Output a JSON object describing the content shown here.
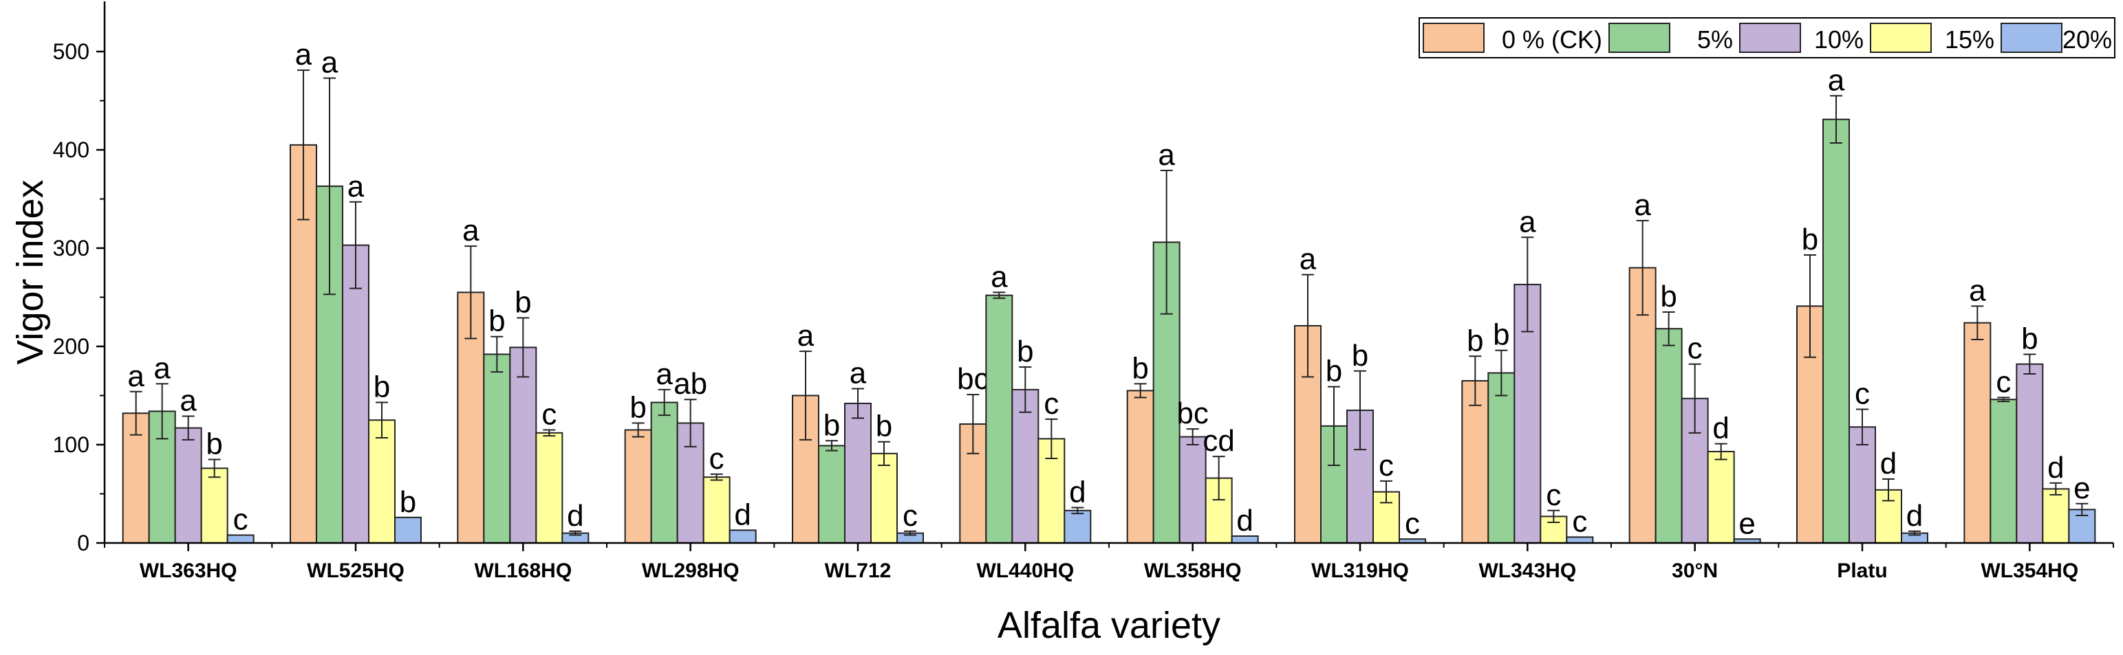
{
  "chart_data": {
    "type": "bar",
    "xlabel": "Alfalfa variety",
    "ylabel": "Vigor index",
    "ylim": [
      0,
      550
    ],
    "yticks": [
      0,
      100,
      200,
      300,
      400,
      500
    ],
    "legend_position": "top-right",
    "categories": [
      "WL363HQ",
      "WL525HQ",
      "WL168HQ",
      "WL298HQ",
      "WL712",
      "WL440HQ",
      "WL358HQ",
      "WL319HQ",
      "WL343HQ",
      "30°N",
      "Platu",
      "WL354HQ"
    ],
    "series": [
      {
        "name": "0 % (CK)",
        "color": "#F9C49A",
        "values": [
          132,
          405,
          255,
          115,
          150,
          121,
          155,
          221,
          165,
          280,
          241,
          224
        ],
        "errors": [
          22,
          76,
          47,
          7,
          45,
          30,
          7,
          52,
          25,
          48,
          52,
          17
        ],
        "letters": [
          "a",
          "a",
          "a",
          "b",
          "a",
          "bc",
          "b",
          "a",
          "b",
          "a",
          "b",
          "a"
        ]
      },
      {
        "name": "5%",
        "color": "#95D096",
        "values": [
          134,
          363,
          192,
          143,
          99,
          252,
          306,
          119,
          173,
          218,
          431,
          146
        ],
        "errors": [
          28,
          110,
          18,
          13,
          5,
          3,
          73,
          40,
          23,
          17,
          24,
          2
        ],
        "letters": [
          "a",
          "a",
          "b",
          "a",
          "b",
          "a",
          "a",
          "b",
          "b",
          "b",
          "a",
          "c"
        ]
      },
      {
        "name": "10%",
        "color": "#C4B1D7",
        "values": [
          117,
          303,
          199,
          122,
          142,
          156,
          108,
          135,
          263,
          147,
          118,
          182
        ],
        "errors": [
          12,
          44,
          30,
          24,
          15,
          23,
          8,
          40,
          48,
          35,
          18,
          10
        ],
        "letters": [
          "a",
          "a",
          "b",
          "ab",
          "a",
          "b",
          "bc",
          "b",
          "a",
          "c",
          "c",
          "b"
        ]
      },
      {
        "name": "15%",
        "color": "#FFFF9E",
        "values": [
          76,
          125,
          112,
          67,
          91,
          106,
          66,
          52,
          27,
          93,
          54,
          55
        ],
        "errors": [
          9,
          18,
          3,
          3,
          12,
          20,
          22,
          11,
          6,
          8,
          11,
          6
        ],
        "letters": [
          "b",
          "b",
          "c",
          "c",
          "b",
          "c",
          "cd",
          "c",
          "c",
          "d",
          "d",
          "d"
        ]
      },
      {
        "name": "20%",
        "color": "#9DBCEC",
        "values": [
          8,
          26,
          10,
          13,
          10,
          33,
          7,
          4,
          6,
          4,
          10,
          34
        ],
        "errors": [
          0,
          0,
          2,
          0,
          2,
          3,
          0,
          0,
          0,
          0,
          2,
          6
        ],
        "letters": [
          "c",
          "b",
          "d",
          "d",
          "c",
          "d",
          "d",
          "c",
          "c",
          "e",
          "d",
          "e"
        ]
      }
    ]
  }
}
